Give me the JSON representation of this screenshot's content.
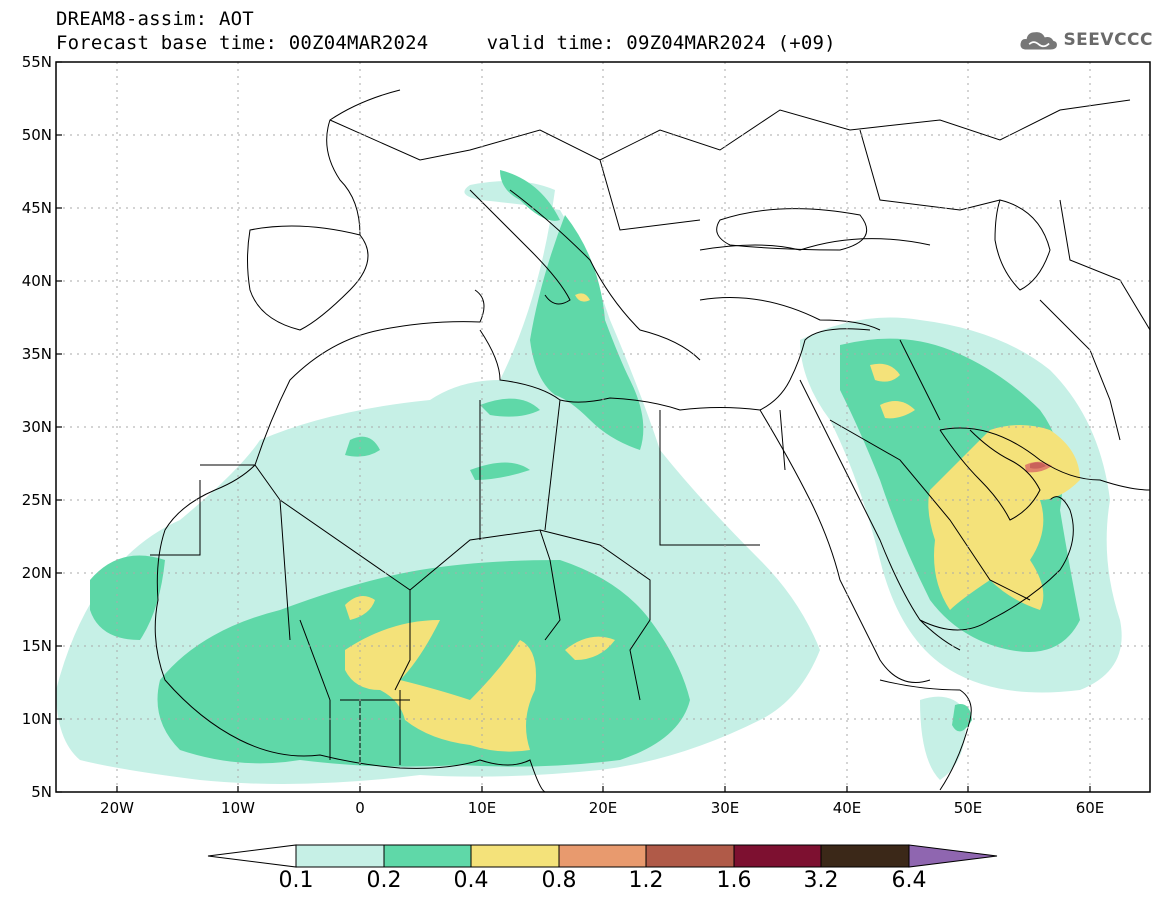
{
  "header": {
    "title_line1": "DREAM8-assim: AOT",
    "title_line2": "Forecast base time: 00Z04MAR2024     valid time: 09Z04MAR2024 (+09)",
    "logo_text": "SEEVCCC"
  },
  "map": {
    "projection": "lat-lon",
    "lon_range": [
      -25,
      65
    ],
    "lat_range": [
      5,
      55
    ],
    "lat_labels": [
      "5N",
      "10N",
      "15N",
      "20N",
      "25N",
      "30N",
      "35N",
      "40N",
      "45N",
      "50N",
      "55N"
    ],
    "lon_labels": [
      "20W",
      "10W",
      "0",
      "10E",
      "20E",
      "30E",
      "40E",
      "50E",
      "60E"
    ],
    "grid": "dotted",
    "variable": "AOT",
    "model": "DREAM8-assim"
  },
  "colorbar": {
    "labels": [
      "0.1",
      "0.2",
      "0.4",
      "0.8",
      "1.2",
      "1.6",
      "3.2",
      "6.4"
    ],
    "colors": [
      "#ffffff",
      "#c6f0e6",
      "#5fd8a8",
      "#f4e27a",
      "#e89a6e",
      "#b05a48",
      "#7d1030",
      "#3b2818",
      "#8f66b0"
    ]
  }
}
